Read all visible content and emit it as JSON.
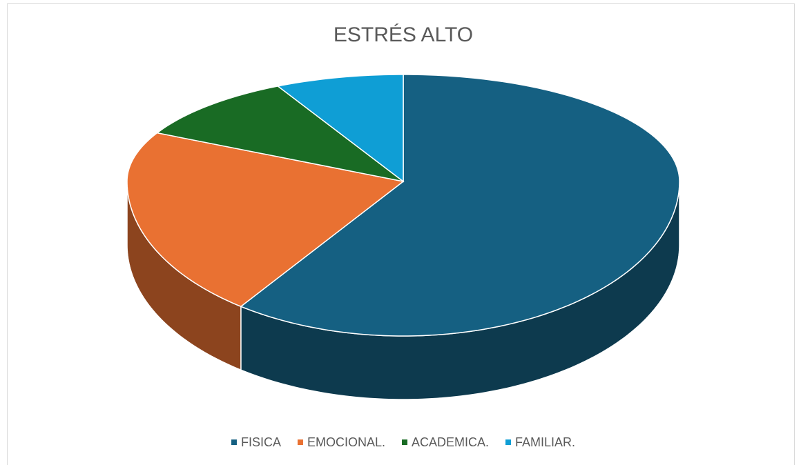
{
  "chart_data": {
    "type": "pie",
    "title": "ESTRÉS ALTO",
    "categories": [
      "FISICA",
      "EMOCIONAL.",
      "ACADEMICA.",
      "FAMILIAR."
    ],
    "values": [
      60,
      22.5,
      10,
      7.5
    ],
    "colors": [
      "#156082",
      "#e97132",
      "#196b24",
      "#0f9ed5"
    ],
    "legend": "bottom"
  }
}
